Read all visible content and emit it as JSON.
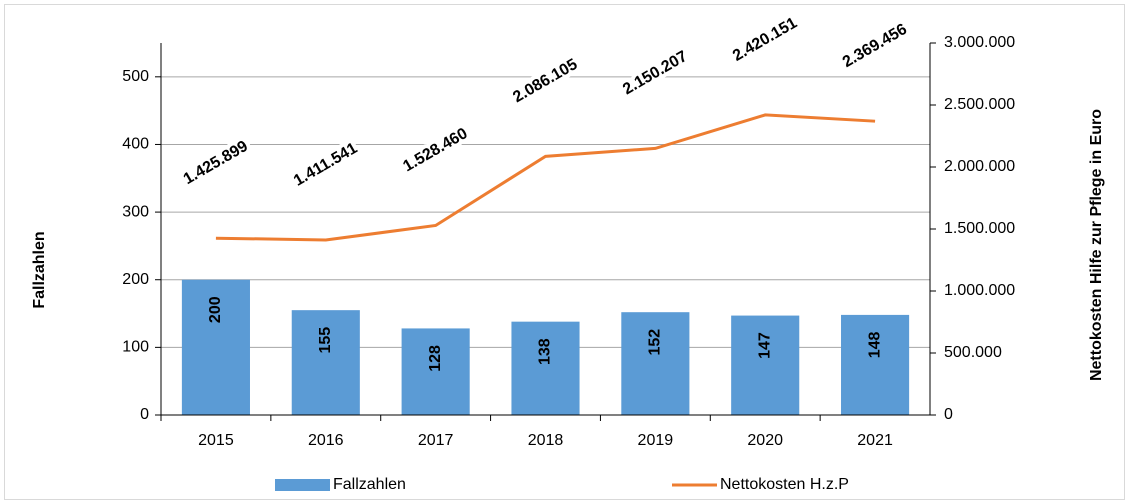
{
  "chart_data": {
    "type": "combo",
    "categories": [
      "2015",
      "2016",
      "2017",
      "2018",
      "2019",
      "2020",
      "2021"
    ],
    "series": [
      {
        "name": "Fallzahlen",
        "type": "bar",
        "color": "#5b9bd5",
        "values": [
          200,
          155,
          128,
          138,
          152,
          147,
          148
        ]
      },
      {
        "name": "Nettokosten H.z.P",
        "type": "line",
        "axis": "y2",
        "color": "#ed7d31",
        "values": [
          1425899,
          1411541,
          1528460,
          2086105,
          2150207,
          2420151,
          2369456
        ],
        "value_labels": [
          "1.425.899",
          "1.411.541",
          "1.528.460",
          "2.086.105",
          "2.150.207",
          "2.420.151",
          "2.369.456"
        ]
      }
    ],
    "ylabel": "Fallzahlen",
    "y2label": "Nettokosten Hilfe zur Pflege in Euro",
    "ylim": [
      0,
      550
    ],
    "yticks": [
      0,
      100,
      200,
      300,
      400,
      500
    ],
    "y2lim": [
      0,
      3000000
    ],
    "y2ticks": [
      0,
      {
        "value": 500000,
        "label": "500.000"
      },
      {
        "value": 1000000,
        "label": "1.000.000"
      },
      {
        "value": 1500000,
        "label": "1.500.000"
      },
      {
        "value": 2000000,
        "label": "2.000.000"
      },
      {
        "value": 2500000,
        "label": "2.500.000"
      },
      {
        "value": 3000000,
        "label": "3.000.000"
      }
    ],
    "grid": true
  }
}
